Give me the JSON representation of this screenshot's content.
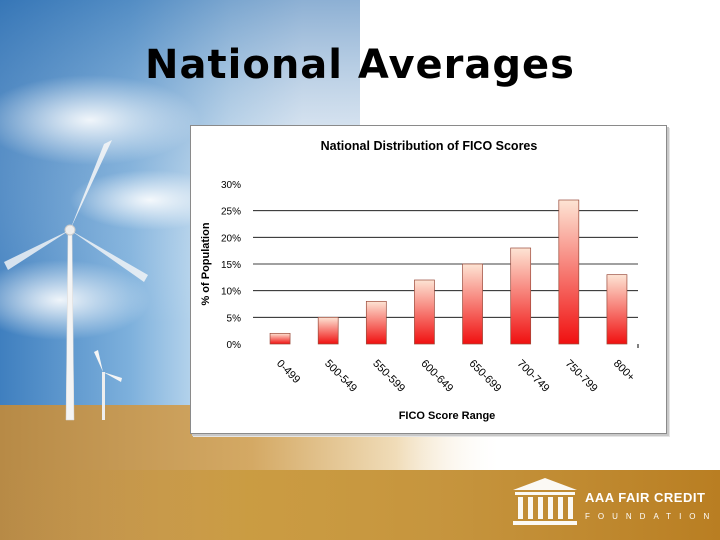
{
  "slide": {
    "title": "National Averages"
  },
  "logo": {
    "name": "AAA FAIR CREDIT",
    "subtitle": "FOUNDATION"
  },
  "colors": {
    "bar_top": "#fde4d4",
    "bar_bottom": "#f01010",
    "bar_stroke": "#9a4a3a",
    "sky_top": "#4f8fc8",
    "field": "#c69a4e",
    "footer": "#c9922c"
  },
  "chart_data": {
    "type": "bar",
    "title": "National Distribution of FICO Scores",
    "xlabel": "FICO Score Range",
    "ylabel": "% of Population",
    "categories": [
      "0-499",
      "500-549",
      "550-599",
      "600-649",
      "650-699",
      "700-749",
      "750-799",
      "800+"
    ],
    "values": [
      2,
      5,
      8,
      12,
      15,
      18,
      27,
      13
    ],
    "ylim": [
      0,
      30
    ],
    "yticks": [
      "0%",
      "5%",
      "10%",
      "15%",
      "20%",
      "25%",
      "30%"
    ],
    "grid": "horizontal",
    "legend": "none"
  }
}
